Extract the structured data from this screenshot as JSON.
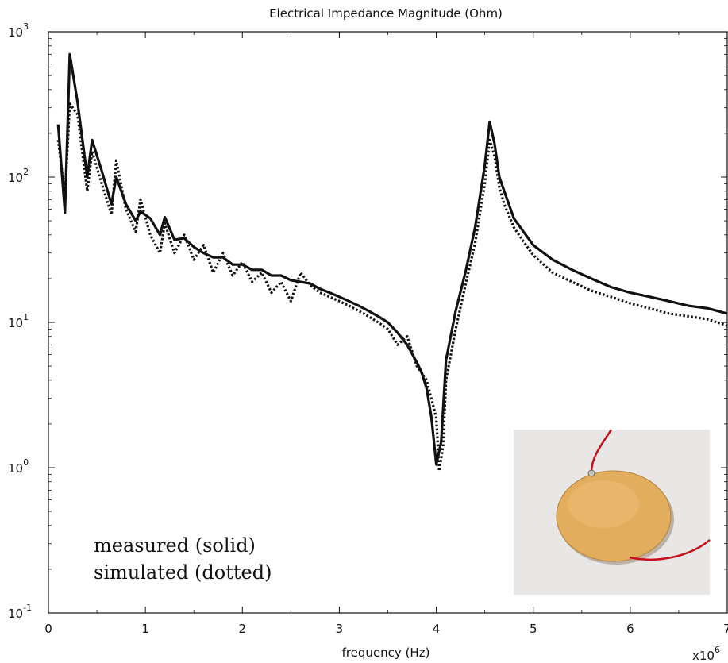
{
  "chart_data": {
    "type": "line",
    "title": "Electrical Impedance Magnitude (Ohm)",
    "xlabel": "frequency (Hz)",
    "ylabel": "",
    "x_multiplier": "x10",
    "x_multiplier_exp": "6",
    "xlim": [
      0,
      7
    ],
    "ylim_log10": [
      -1,
      3
    ],
    "yscale": "log",
    "grid": false,
    "x_ticks": [
      {
        "value": 0,
        "label": "0"
      },
      {
        "value": 1,
        "label": "1"
      },
      {
        "value": 2,
        "label": "2"
      },
      {
        "value": 3,
        "label": "3"
      },
      {
        "value": 4,
        "label": "4"
      },
      {
        "value": 5,
        "label": "5"
      },
      {
        "value": 6,
        "label": "6"
      },
      {
        "value": 7,
        "label": "7"
      }
    ],
    "y_ticks": [
      {
        "exp": -1,
        "base": "10",
        "sup": "-1"
      },
      {
        "exp": 0,
        "base": "10",
        "sup": "0"
      },
      {
        "exp": 1,
        "base": "10",
        "sup": "1"
      },
      {
        "exp": 2,
        "base": "10",
        "sup": "2"
      },
      {
        "exp": 3,
        "base": "10",
        "sup": "3"
      }
    ],
    "legend_lines": [
      "measured (solid)",
      "simulated (dotted)"
    ],
    "series": [
      {
        "style": "solid",
        "x": [
          0.1,
          0.17,
          0.22,
          0.3,
          0.4,
          0.45,
          0.55,
          0.65,
          0.7,
          0.8,
          0.9,
          0.95,
          1.05,
          1.15,
          1.2,
          1.3,
          1.4,
          1.5,
          1.6,
          1.7,
          1.8,
          1.9,
          2.0,
          2.1,
          2.2,
          2.3,
          2.4,
          2.5,
          2.6,
          2.7,
          2.8,
          2.9,
          3.0,
          3.1,
          3.2,
          3.3,
          3.4,
          3.5,
          3.6,
          3.7,
          3.8,
          3.85,
          3.9,
          3.95,
          4.0,
          4.05,
          4.1,
          4.2,
          4.3,
          4.4,
          4.5,
          4.55,
          4.6,
          4.65,
          4.7,
          4.8,
          4.9,
          5.0,
          5.2,
          5.4,
          5.6,
          5.8,
          6.0,
          6.2,
          6.4,
          6.6,
          6.8,
          7.0
        ],
        "y": [
          230,
          57,
          700,
          330,
          100,
          180,
          110,
          65,
          100,
          65,
          50,
          58,
          52,
          40,
          53,
          37,
          38,
          33,
          30,
          28,
          28,
          25,
          25,
          23,
          23,
          21,
          21,
          19.5,
          19,
          18.5,
          17,
          16,
          15,
          14,
          13,
          12,
          11,
          10,
          8.5,
          7,
          5.3,
          4.5,
          3.5,
          2.2,
          1.05,
          1.5,
          5.5,
          12,
          22,
          45,
          120,
          240,
          170,
          100,
          80,
          52,
          42,
          34,
          27,
          23,
          20,
          17.5,
          16,
          15,
          14,
          13,
          12.5,
          11.5
        ]
      },
      {
        "style": "dotted",
        "x": [
          0.1,
          0.17,
          0.22,
          0.3,
          0.4,
          0.45,
          0.55,
          0.65,
          0.7,
          0.8,
          0.9,
          0.95,
          1.05,
          1.15,
          1.2,
          1.3,
          1.4,
          1.5,
          1.6,
          1.7,
          1.8,
          1.9,
          2.0,
          2.1,
          2.2,
          2.3,
          2.4,
          2.5,
          2.6,
          2.7,
          2.8,
          2.9,
          3.0,
          3.1,
          3.2,
          3.3,
          3.4,
          3.5,
          3.6,
          3.7,
          3.8,
          3.9,
          4.0,
          4.03,
          4.07,
          4.1,
          4.2,
          4.3,
          4.4,
          4.5,
          4.55,
          4.6,
          4.65,
          4.7,
          4.8,
          4.9,
          5.0,
          5.2,
          5.4,
          5.6,
          5.8,
          6.0,
          6.2,
          6.4,
          6.6,
          6.8,
          7.0
        ],
        "y": [
          180,
          75,
          320,
          270,
          80,
          150,
          90,
          55,
          130,
          60,
          42,
          70,
          40,
          30,
          48,
          30,
          40,
          27,
          34,
          22,
          30,
          21,
          26,
          19,
          22,
          16,
          19,
          14,
          22,
          18,
          16,
          15,
          14,
          13,
          12,
          11,
          10,
          9,
          7,
          8,
          5,
          4,
          2.2,
          0.95,
          1.4,
          4,
          9,
          18,
          35,
          90,
          180,
          140,
          85,
          65,
          45,
          36,
          29,
          22,
          19,
          16.5,
          15,
          13.5,
          12.5,
          11.5,
          11,
          10.5,
          9.5
        ]
      }
    ]
  },
  "inset_photo": {
    "subject": "piezoelectric-disc-with-wires",
    "disc_color": "#e2ad5c",
    "wire_color": "#c8101a",
    "background_color": "#e8e7e6"
  }
}
